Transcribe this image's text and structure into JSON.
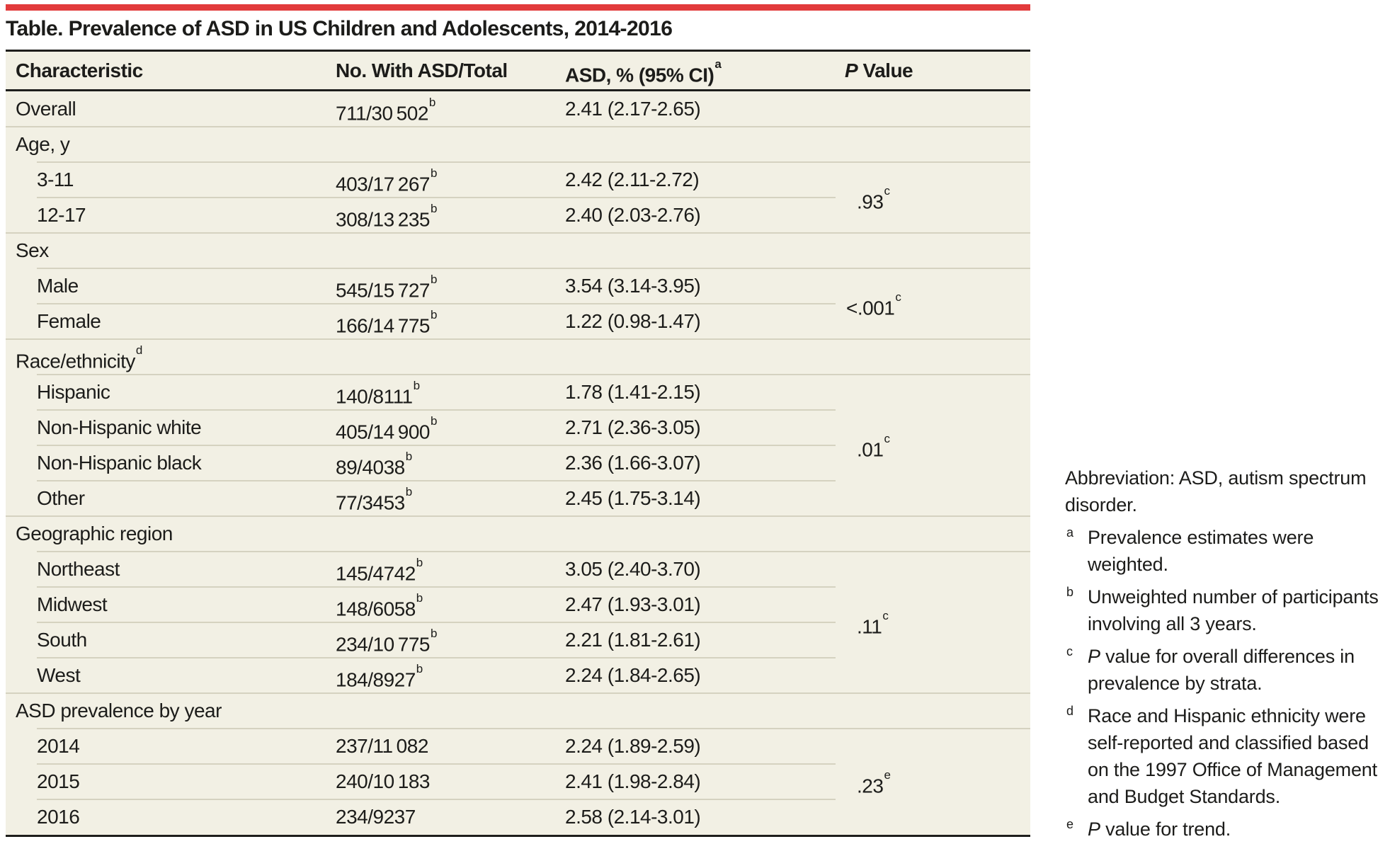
{
  "colors": {
    "accent_red": "#e23b3c",
    "table_background": "#f2f0e4",
    "black_rule": "#1e1e1c",
    "light_rule": "#d5d2c0",
    "text": "#1c1c1a"
  },
  "title": "Table. Prevalence of ASD in US Children and Adolescents, 2014-2016",
  "table": {
    "headers": [
      {
        "label": "Characteristic"
      },
      {
        "label": "No. With ASD/Total"
      },
      {
        "label": "ASD, % (95% CI)",
        "sup": "a"
      },
      {
        "label": "P Value",
        "italic_p": true
      }
    ],
    "rows": [
      {
        "type": "data",
        "indent": 0,
        "label": "Overall",
        "n": "711/30 502",
        "n_sup": "b",
        "pct": "2.41 (2.17-2.65)"
      },
      {
        "type": "group",
        "label": "Age, y",
        "sup": ""
      },
      {
        "type": "data",
        "indent": 1,
        "label": "3-11",
        "n": "403/17 267",
        "n_sup": "b",
        "pct": "2.42 (2.11-2.72)"
      },
      {
        "type": "data",
        "indent": 1,
        "label": "12-17",
        "n": "308/13 235",
        "n_sup": "b",
        "pct": "2.40 (2.03-2.76)"
      },
      {
        "type": "group",
        "label": "Sex",
        "sup": ""
      },
      {
        "type": "data",
        "indent": 1,
        "label": "Male",
        "n": "545/15 727",
        "n_sup": "b",
        "pct": "3.54 (3.14-3.95)"
      },
      {
        "type": "data",
        "indent": 1,
        "label": "Female",
        "n": "166/14 775",
        "n_sup": "b",
        "pct": "1.22 (0.98-1.47)"
      },
      {
        "type": "group",
        "label": "Race/ethnicity",
        "sup": "d"
      },
      {
        "type": "data",
        "indent": 1,
        "label": "Hispanic",
        "n": "140/8111",
        "n_sup": "b",
        "pct": "1.78 (1.41-2.15)"
      },
      {
        "type": "data",
        "indent": 1,
        "label": "Non-Hispanic white",
        "n": "405/14 900",
        "n_sup": "b",
        "pct": "2.71 (2.36-3.05)"
      },
      {
        "type": "data",
        "indent": 1,
        "label": "Non-Hispanic black",
        "n": "89/4038",
        "n_sup": "b",
        "pct": "2.36 (1.66-3.07)"
      },
      {
        "type": "data",
        "indent": 1,
        "label": "Other",
        "n": "77/3453",
        "n_sup": "b",
        "pct": "2.45 (1.75-3.14)"
      },
      {
        "type": "group",
        "label": "Geographic region",
        "sup": ""
      },
      {
        "type": "data",
        "indent": 1,
        "label": "Northeast",
        "n": "145/4742",
        "n_sup": "b",
        "pct": "3.05 (2.40-3.70)"
      },
      {
        "type": "data",
        "indent": 1,
        "label": "Midwest",
        "n": "148/6058",
        "n_sup": "b",
        "pct": "2.47 (1.93-3.01)"
      },
      {
        "type": "data",
        "indent": 1,
        "label": "South",
        "n": "234/10 775",
        "n_sup": "b",
        "pct": "2.21 (1.81-2.61)"
      },
      {
        "type": "data",
        "indent": 1,
        "label": "West",
        "n": "184/8927",
        "n_sup": "b",
        "pct": "2.24 (1.84-2.65)"
      },
      {
        "type": "group",
        "label": "ASD prevalence by year",
        "sup": ""
      },
      {
        "type": "data",
        "indent": 1,
        "label": "2014",
        "n": "237/11 082",
        "n_sup": "",
        "pct": "2.24 (1.89-2.59)"
      },
      {
        "type": "data",
        "indent": 1,
        "label": "2015",
        "n": "240/10 183",
        "n_sup": "",
        "pct": "2.41 (1.98-2.84)"
      },
      {
        "type": "data",
        "indent": 1,
        "label": "2016",
        "n": "234/9237",
        "n_sup": "",
        "pct": "2.58 (2.14-3.01)"
      }
    ],
    "p_values": [
      {
        "text": ".93",
        "sup": "c",
        "span_rows": [
          2,
          3
        ]
      },
      {
        "text": "<.001",
        "sup": "c",
        "span_rows": [
          5,
          6
        ]
      },
      {
        "text": ".01",
        "sup": "c",
        "span_rows": [
          8,
          11
        ]
      },
      {
        "text": ".11",
        "sup": "c",
        "span_rows": [
          13,
          16
        ]
      },
      {
        "text": ".23",
        "sup": "e",
        "span_rows": [
          18,
          20
        ]
      }
    ]
  },
  "footnotes": [
    {
      "sup": "",
      "italic_p": false,
      "lines": [
        "Abbreviation: ASD, autism spectrum",
        "disorder."
      ]
    },
    {
      "sup": "a",
      "italic_p": false,
      "lines": [
        "Prevalence estimates were",
        "weighted."
      ]
    },
    {
      "sup": "b",
      "italic_p": false,
      "lines": [
        "Unweighted number of participants",
        "involving all 3 years."
      ]
    },
    {
      "sup": "c",
      "italic_p": true,
      "lines": [
        "P value for overall differences in",
        "prevalence by strata."
      ]
    },
    {
      "sup": "d",
      "italic_p": false,
      "lines": [
        "Race and Hispanic ethnicity were",
        "self-reported and classified based",
        "on the 1997 Office of Management",
        "and Budget Standards."
      ]
    },
    {
      "sup": "e",
      "italic_p": true,
      "lines": [
        "P value for trend."
      ]
    }
  ]
}
